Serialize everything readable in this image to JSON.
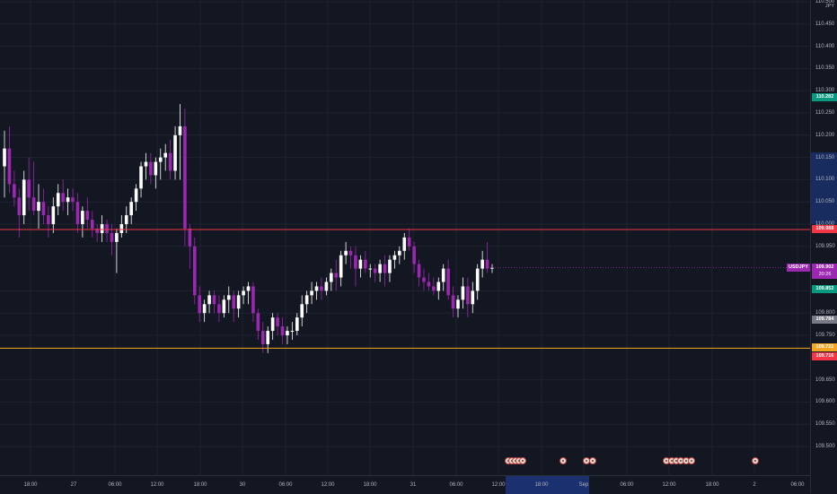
{
  "currency": "JPY",
  "symbol_label": "USDJPY",
  "countdown": "20:26",
  "colors": {
    "background": "#131722",
    "grid": "#1f2330",
    "bull": "#ffffff",
    "bear": "#9c27b0",
    "resistance": "#f23645",
    "support": "#f5a623"
  },
  "price_axis": {
    "ticks": [
      "110.500",
      "110.450",
      "110.400",
      "110.350",
      "110.300",
      "110.250",
      "110.200",
      "110.150",
      "110.100",
      "110.050",
      "110.000",
      "109.950",
      "109.850",
      "109.800",
      "109.750",
      "109.650",
      "109.600",
      "109.550",
      "109.500"
    ],
    "tick_values": [
      110.5,
      110.45,
      110.4,
      110.35,
      110.3,
      110.25,
      110.2,
      110.15,
      110.1,
      110.05,
      110.0,
      109.95,
      109.85,
      109.8,
      109.75,
      109.65,
      109.6,
      109.55,
      109.5
    ],
    "badges": [
      {
        "label": "110.282",
        "value": 110.282,
        "color": "#089981"
      },
      {
        "label": "109.988",
        "value": 109.988,
        "color": "#f23645"
      },
      {
        "label": "109.902",
        "value": 109.902,
        "color": "#9c27b0"
      },
      {
        "label": "109.852",
        "value": 109.852,
        "color": "#089981"
      },
      {
        "label": "109.784",
        "value": 109.784,
        "color": "#787b86"
      },
      {
        "label": "109.721",
        "value": 109.721,
        "color": "#f5a623"
      },
      {
        "label": "109.716",
        "value": 109.716,
        "color": "#f23645"
      }
    ]
  },
  "time_axis": {
    "ticks": [
      "18:00",
      "27",
      "06:00",
      "12:00",
      "18:00",
      "30",
      "06:00",
      "12:00",
      "18:00",
      "31",
      "06:00",
      "12:00",
      "18:00",
      "Sep",
      "06:00",
      "12:00",
      "18:00",
      "2",
      "06:00"
    ]
  },
  "chart_data": {
    "type": "candlestick",
    "symbol": "USDJPY",
    "horizontal_lines": [
      {
        "price": 109.988,
        "color": "#f23645"
      },
      {
        "price": 109.721,
        "color": "#f5a623"
      }
    ],
    "candles": [
      [
        110.13,
        110.21,
        110.06,
        110.17
      ],
      [
        110.17,
        110.22,
        110.07,
        110.09
      ],
      [
        110.09,
        110.12,
        110.04,
        110.06
      ],
      [
        110.06,
        110.08,
        109.97,
        110.02
      ],
      [
        110.02,
        110.12,
        110.0,
        110.1
      ],
      [
        110.1,
        110.15,
        110.03,
        110.06
      ],
      [
        110.06,
        110.14,
        110.02,
        110.03
      ],
      [
        110.03,
        110.09,
        109.99,
        110.05
      ],
      [
        110.05,
        110.08,
        110.0,
        110.02
      ],
      [
        110.02,
        110.04,
        109.97,
        110.0
      ],
      [
        110.0,
        110.06,
        109.98,
        110.04
      ],
      [
        110.04,
        110.09,
        110.02,
        110.07
      ],
      [
        110.07,
        110.1,
        110.03,
        110.05
      ],
      [
        110.05,
        110.08,
        110.02,
        110.06
      ],
      [
        110.06,
        110.08,
        110.03,
        110.05
      ],
      [
        110.05,
        110.07,
        109.98,
        110.0
      ],
      [
        110.0,
        110.04,
        109.97,
        110.03
      ],
      [
        110.03,
        110.06,
        109.99,
        110.01
      ],
      [
        110.01,
        110.03,
        109.97,
        109.99
      ],
      [
        109.99,
        110.0,
        109.96,
        109.98
      ],
      [
        109.98,
        110.02,
        109.96,
        110.0
      ],
      [
        110.0,
        110.01,
        109.96,
        109.98
      ],
      [
        109.98,
        110.0,
        109.93,
        109.96
      ],
      [
        109.96,
        109.99,
        109.89,
        109.98
      ],
      [
        109.98,
        110.02,
        109.97,
        110.0
      ],
      [
        110.0,
        110.04,
        109.98,
        110.02
      ],
      [
        110.02,
        110.06,
        110.0,
        110.05
      ],
      [
        110.05,
        110.09,
        110.03,
        110.08
      ],
      [
        110.08,
        110.14,
        110.06,
        110.13
      ],
      [
        110.13,
        110.16,
        110.1,
        110.14
      ],
      [
        110.14,
        110.16,
        110.09,
        110.11
      ],
      [
        110.11,
        110.15,
        110.08,
        110.14
      ],
      [
        110.14,
        110.17,
        110.1,
        110.15
      ],
      [
        110.15,
        110.18,
        110.12,
        110.16
      ],
      [
        110.16,
        110.19,
        110.1,
        110.12
      ],
      [
        110.12,
        110.22,
        110.1,
        110.2
      ],
      [
        110.2,
        110.27,
        110.1,
        110.22
      ],
      [
        110.22,
        110.26,
        109.95,
        109.99
      ],
      [
        109.99,
        110.0,
        109.9,
        109.95
      ],
      [
        109.95,
        109.97,
        109.82,
        109.84
      ],
      [
        109.84,
        109.86,
        109.78,
        109.8
      ],
      [
        109.8,
        109.83,
        109.78,
        109.82
      ],
      [
        109.82,
        109.85,
        109.8,
        109.84
      ],
      [
        109.84,
        109.85,
        109.8,
        109.82
      ],
      [
        109.82,
        109.84,
        109.78,
        109.8
      ],
      [
        109.8,
        109.84,
        109.79,
        109.83
      ],
      [
        109.83,
        109.86,
        109.8,
        109.84
      ],
      [
        109.84,
        109.85,
        109.78,
        109.81
      ],
      [
        109.81,
        109.85,
        109.79,
        109.84
      ],
      [
        109.84,
        109.86,
        109.82,
        109.85
      ],
      [
        109.85,
        109.87,
        109.82,
        109.86
      ],
      [
        109.86,
        109.87,
        109.78,
        109.8
      ],
      [
        109.8,
        109.81,
        109.74,
        109.76
      ],
      [
        109.76,
        109.78,
        109.71,
        109.73
      ],
      [
        109.73,
        109.77,
        109.71,
        109.76
      ],
      [
        109.76,
        109.8,
        109.74,
        109.79
      ],
      [
        109.79,
        109.8,
        109.75,
        109.77
      ],
      [
        109.77,
        109.79,
        109.73,
        109.75
      ],
      [
        109.75,
        109.77,
        109.73,
        109.76
      ],
      [
        109.76,
        109.78,
        109.74,
        109.76
      ],
      [
        109.76,
        109.8,
        109.75,
        109.79
      ],
      [
        109.79,
        109.84,
        109.77,
        109.82
      ],
      [
        109.82,
        109.85,
        109.8,
        109.84
      ],
      [
        109.84,
        109.87,
        109.82,
        109.85
      ],
      [
        109.85,
        109.87,
        109.83,
        109.86
      ],
      [
        109.86,
        109.88,
        109.83,
        109.85
      ],
      [
        109.85,
        109.88,
        109.84,
        109.87
      ],
      [
        109.87,
        109.9,
        109.85,
        109.89
      ],
      [
        109.89,
        109.92,
        109.85,
        109.88
      ],
      [
        109.88,
        109.94,
        109.86,
        109.93
      ],
      [
        109.93,
        109.96,
        109.91,
        109.94
      ],
      [
        109.94,
        109.95,
        109.9,
        109.93
      ],
      [
        109.93,
        109.95,
        109.86,
        109.9
      ],
      [
        109.9,
        109.93,
        109.88,
        109.92
      ],
      [
        109.92,
        109.94,
        109.89,
        109.9
      ],
      [
        109.9,
        109.91,
        109.88,
        109.9
      ],
      [
        109.9,
        109.91,
        109.87,
        109.89
      ],
      [
        109.89,
        109.92,
        109.87,
        109.91
      ],
      [
        109.91,
        109.93,
        109.86,
        109.89
      ],
      [
        109.89,
        109.93,
        109.87,
        109.92
      ],
      [
        109.92,
        109.94,
        109.9,
        109.93
      ],
      [
        109.93,
        109.95,
        109.91,
        109.94
      ],
      [
        109.94,
        109.98,
        109.92,
        109.97
      ],
      [
        109.97,
        109.99,
        109.94,
        109.95
      ],
      [
        109.95,
        109.96,
        109.89,
        109.91
      ],
      [
        109.91,
        109.92,
        109.86,
        109.88
      ],
      [
        109.88,
        109.9,
        109.85,
        109.87
      ],
      [
        109.87,
        109.89,
        109.85,
        109.86
      ],
      [
        109.86,
        109.88,
        109.84,
        109.85
      ],
      [
        109.85,
        109.88,
        109.83,
        109.87
      ],
      [
        109.87,
        109.91,
        109.85,
        109.9
      ],
      [
        109.9,
        109.92,
        109.83,
        109.84
      ],
      [
        109.84,
        109.86,
        109.79,
        109.81
      ],
      [
        109.81,
        109.84,
        109.79,
        109.83
      ],
      [
        109.83,
        109.88,
        109.81,
        109.86
      ],
      [
        109.86,
        109.88,
        109.79,
        109.82
      ],
      [
        109.82,
        109.87,
        109.8,
        109.85
      ],
      [
        109.85,
        109.91,
        109.83,
        109.9
      ],
      [
        109.9,
        109.94,
        109.88,
        109.92
      ],
      [
        109.92,
        109.96,
        109.89,
        109.9
      ],
      [
        109.9,
        109.91,
        109.89,
        109.902
      ]
    ]
  },
  "events": [
    {
      "x": 566
    },
    {
      "x": 570
    },
    {
      "x": 574
    },
    {
      "x": 578
    },
    {
      "x": 582
    },
    {
      "x": 627
    },
    {
      "x": 653
    },
    {
      "x": 660
    },
    {
      "x": 742
    },
    {
      "x": 748
    },
    {
      "x": 753
    },
    {
      "x": 758
    },
    {
      "x": 764
    },
    {
      "x": 770
    },
    {
      "x": 841
    }
  ]
}
